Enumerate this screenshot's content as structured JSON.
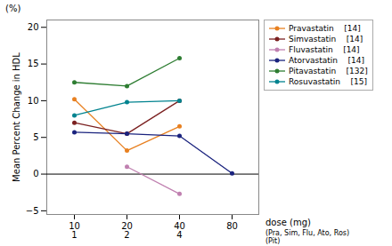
{
  "chart_data": {
    "type": "line",
    "ylabel": "Mean Percent Change in HDL",
    "ylabel_note": "(%)",
    "xlabel": "dose (mg)",
    "xlabel_notes": [
      "(Pra, Sim, Flu, Ato, Ros)",
      "(Pit)"
    ],
    "categories": [
      "10",
      "20",
      "40",
      "80"
    ],
    "categories_sub": [
      "1",
      "2",
      "4",
      null
    ],
    "ylim": [
      -5.5,
      21
    ],
    "yticks": [
      -5,
      0,
      5,
      10,
      15,
      20
    ],
    "legend": "upper right",
    "marker": "circle",
    "line_style": "solid",
    "series": [
      {
        "name": "Pravastatin",
        "ref": "[14]",
        "color": "#e88020",
        "values": [
          10.2,
          3.2,
          6.5,
          null
        ]
      },
      {
        "name": "Simvastatin",
        "ref": "[14]",
        "color": "#7b2020",
        "values": [
          7.0,
          5.5,
          10.0,
          null
        ]
      },
      {
        "name": "Fluvastatin",
        "ref": "[14]",
        "color": "#c080b0",
        "values": [
          null,
          1.0,
          -2.7,
          null
        ]
      },
      {
        "name": "Atorvastatin",
        "ref": "[14]",
        "color": "#1a237e",
        "values": [
          5.7,
          5.5,
          5.2,
          0.1
        ]
      },
      {
        "name": "Pitavastatin",
        "ref": "[132]",
        "color": "#2e7d32",
        "values": [
          12.5,
          12.0,
          15.8,
          null
        ]
      },
      {
        "name": "Rosuvastatin",
        "ref": "[15]",
        "color": "#00838f",
        "values": [
          8.0,
          9.8,
          10.0,
          null
        ]
      }
    ]
  }
}
